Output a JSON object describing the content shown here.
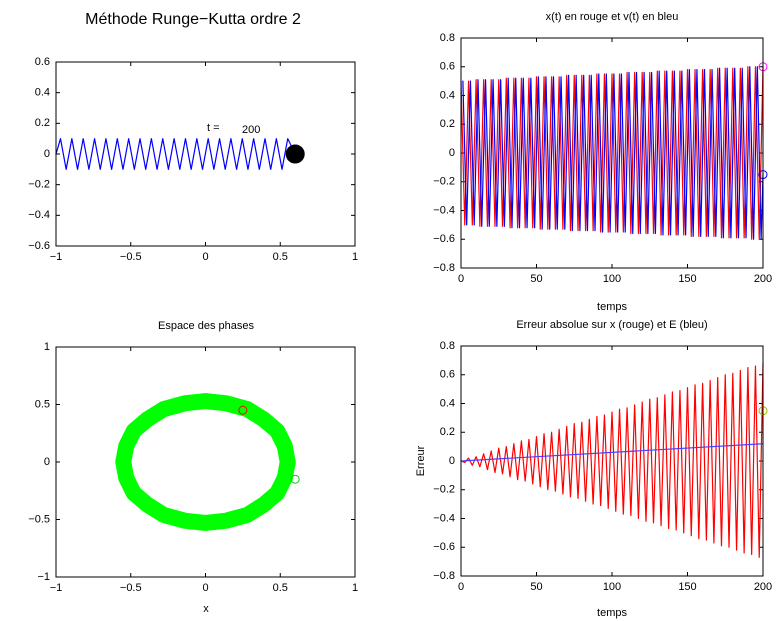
{
  "chart_data": [
    {
      "type": "line",
      "title": "Méthode Runge−Kutta ordre 2",
      "xlim": [
        -1,
        1
      ],
      "ylim": [
        -0.6,
        0.6
      ],
      "xticks": [
        {
          "value": -1,
          "label": "−1"
        },
        {
          "value": -0.5,
          "label": "−0.5"
        },
        0,
        0.5,
        1
      ],
      "yticks": [
        {
          "value": -0.6,
          "label": "−0.6"
        },
        {
          "value": -0.4,
          "label": "−0.4"
        },
        {
          "value": -0.2,
          "label": "−0.2"
        },
        0,
        0.2,
        0.4,
        0.6
      ],
      "series": [
        {
          "color": "#0000ff",
          "x": [
            -1,
            -0.97,
            -0.932,
            -0.894,
            -0.856,
            -0.818,
            -0.78,
            -0.742,
            -0.704,
            -0.666,
            -0.628,
            -0.59,
            -0.552,
            -0.514,
            -0.476,
            -0.438,
            -0.4,
            -0.362,
            -0.324,
            -0.286,
            -0.248,
            -0.21,
            -0.172,
            -0.134,
            -0.096,
            -0.058,
            -0.02,
            0.018,
            0.056,
            0.094,
            0.132,
            0.17,
            0.208,
            0.246,
            0.284,
            0.322,
            0.36,
            0.398,
            0.436,
            0.474,
            0.512,
            0.55,
            0.6
          ],
          "values": [
            0,
            0.1,
            -0.1,
            0.1,
            -0.1,
            0.1,
            -0.1,
            0.1,
            -0.1,
            0.1,
            -0.1,
            0.1,
            -0.1,
            0.1,
            -0.1,
            0.1,
            -0.1,
            0.1,
            -0.1,
            0.1,
            -0.1,
            0.1,
            -0.1,
            0.1,
            -0.1,
            0.1,
            -0.1,
            0.1,
            -0.1,
            0.1,
            -0.1,
            0.1,
            -0.1,
            0.1,
            -0.1,
            0.1,
            -0.1,
            0.1,
            -0.1,
            0.1,
            -0.1,
            0.1,
            0
          ]
        }
      ],
      "markers": [
        {
          "x": 0.6,
          "y": 0,
          "color": "#000000",
          "filled": true
        }
      ],
      "time_label": "t =",
      "time": 200
    },
    {
      "type": "line",
      "title": "x(t) en rouge et v(t) en bleu",
      "xlabel": "temps",
      "xlim": [
        0,
        200
      ],
      "ylim": [
        -0.8,
        0.8
      ],
      "xticks": [
        0,
        50,
        100,
        150,
        200
      ],
      "yticks": [
        {
          "value": -0.8,
          "label": "−0.8"
        },
        {
          "value": -0.6,
          "label": "−0.6"
        },
        {
          "value": -0.4,
          "label": "−0.4"
        },
        {
          "value": -0.2,
          "label": "−0.2"
        },
        0,
        0.2,
        0.4,
        0.6,
        0.8
      ],
      "series": [
        {
          "color": "#ff0000",
          "x": [
            0,
            2.5,
            5,
            7.5,
            10,
            12.5,
            15,
            17.5,
            20,
            22.5,
            25,
            27.5,
            30,
            32.5,
            35,
            37.5,
            40,
            42.5,
            45,
            47.5,
            50,
            52.5,
            55,
            57.5,
            60,
            62.5,
            65,
            67.5,
            70,
            72.5,
            75,
            77.5,
            80,
            82.5,
            85,
            87.5,
            90,
            92.5,
            95,
            97.5,
            100,
            102.5,
            105,
            107.5,
            110,
            112.5,
            115,
            117.5,
            120,
            122.5,
            125,
            127.5,
            130,
            132.5,
            135,
            137.5,
            140,
            142.5,
            145,
            147.5,
            150,
            152.5,
            155,
            157.5,
            160,
            162.5,
            165,
            167.5,
            170,
            172.5,
            175,
            177.5,
            180,
            182.5,
            185,
            187.5,
            190,
            192.5,
            195,
            197.5,
            200
          ],
          "values": [
            0.5,
            -0.5,
            0.5,
            -0.5,
            0.51,
            -0.51,
            0.51,
            -0.51,
            0.51,
            -0.51,
            0.51,
            -0.51,
            0.52,
            -0.52,
            0.52,
            -0.52,
            0.52,
            -0.52,
            0.52,
            -0.52,
            0.53,
            -0.53,
            0.53,
            -0.53,
            0.53,
            -0.53,
            0.53,
            -0.53,
            0.54,
            -0.54,
            0.54,
            -0.54,
            0.54,
            -0.54,
            0.54,
            -0.54,
            0.55,
            -0.55,
            0.55,
            -0.55,
            0.55,
            -0.55,
            0.55,
            -0.55,
            0.56,
            -0.56,
            0.56,
            -0.56,
            0.56,
            -0.56,
            0.56,
            -0.56,
            0.57,
            -0.57,
            0.57,
            -0.57,
            0.57,
            -0.57,
            0.57,
            -0.57,
            0.58,
            -0.58,
            0.58,
            -0.58,
            0.58,
            -0.58,
            0.58,
            -0.58,
            0.59,
            -0.59,
            0.59,
            -0.59,
            0.59,
            -0.59,
            0.59,
            -0.59,
            0.6,
            -0.6,
            0.6,
            -0.6,
            0.6
          ]
        },
        {
          "color": "#0000ff",
          "x": [
            1.25,
            3.75,
            6.25,
            8.75,
            11.25,
            13.75,
            16.25,
            18.75,
            21.25,
            23.75,
            26.25,
            28.75,
            31.25,
            33.75,
            36.25,
            38.75,
            41.25,
            43.75,
            46.25,
            48.75,
            51.25,
            53.75,
            56.25,
            58.75,
            61.25,
            63.75,
            66.25,
            68.75,
            71.25,
            73.75,
            76.25,
            78.75,
            81.25,
            83.75,
            86.25,
            88.75,
            91.25,
            93.75,
            96.25,
            98.75,
            101.25,
            103.75,
            106.25,
            108.75,
            111.25,
            113.75,
            116.25,
            118.75,
            121.25,
            123.75,
            126.25,
            128.75,
            131.25,
            133.75,
            136.25,
            138.75,
            141.25,
            143.75,
            146.25,
            148.75,
            151.25,
            153.75,
            156.25,
            158.75,
            161.25,
            163.75,
            166.25,
            168.75,
            171.25,
            173.75,
            176.25,
            178.75,
            181.25,
            183.75,
            186.25,
            188.75,
            191.25,
            193.75,
            196.25,
            198.75,
            200
          ],
          "values": [
            0.5,
            -0.5,
            0.5,
            -0.5,
            0.51,
            -0.51,
            0.51,
            -0.51,
            0.51,
            -0.51,
            0.51,
            -0.51,
            0.52,
            -0.52,
            0.52,
            -0.52,
            0.52,
            -0.52,
            0.52,
            -0.52,
            0.53,
            -0.53,
            0.53,
            -0.53,
            0.53,
            -0.53,
            0.53,
            -0.53,
            0.54,
            -0.54,
            0.54,
            -0.54,
            0.54,
            -0.54,
            0.54,
            -0.54,
            0.55,
            -0.55,
            0.55,
            -0.55,
            0.55,
            -0.55,
            0.55,
            -0.55,
            0.56,
            -0.56,
            0.56,
            -0.56,
            0.56,
            -0.56,
            0.56,
            -0.56,
            0.57,
            -0.57,
            0.57,
            -0.57,
            0.57,
            -0.57,
            0.57,
            -0.57,
            0.58,
            -0.58,
            0.58,
            -0.58,
            0.58,
            -0.58,
            0.58,
            -0.58,
            0.59,
            -0.59,
            0.59,
            -0.59,
            0.59,
            -0.59,
            0.59,
            -0.59,
            0.6,
            -0.6,
            0.6,
            -0.6,
            -0.15
          ]
        }
      ],
      "markers": [
        {
          "x": 200,
          "y": 0.6,
          "color": "#ff00ff",
          "filled": false
        },
        {
          "x": 200,
          "y": -0.15,
          "color": "#0000ff",
          "filled": false
        }
      ]
    },
    {
      "type": "line",
      "title": "Espace des phases",
      "xlabel": "x",
      "xlim": [
        -1,
        1
      ],
      "ylim": [
        -1,
        1
      ],
      "xticks": [
        {
          "value": -1,
          "label": "−1"
        },
        {
          "value": -0.5,
          "label": "−0.5"
        },
        0,
        0.5,
        1
      ],
      "yticks": [
        {
          "value": -1,
          "label": "−1"
        },
        {
          "value": -0.5,
          "label": "−0.5"
        },
        0,
        0.5,
        1
      ],
      "series": [
        {
          "color": "#00ff00",
          "x": [
            0.55,
            0.53,
            0.48,
            0.39,
            0.28,
            0.14,
            0,
            -0.14,
            -0.28,
            -0.39,
            -0.48,
            -0.53,
            -0.55,
            -0.53,
            -0.48,
            -0.39,
            -0.28,
            -0.14,
            0,
            0.14,
            0.28,
            0.39,
            0.48,
            0.53,
            0.55
          ],
          "values": [
            0,
            0.14,
            0.27,
            0.37,
            0.46,
            0.51,
            0.53,
            0.51,
            0.46,
            0.37,
            0.27,
            0.14,
            0,
            -0.14,
            -0.27,
            -0.37,
            -0.46,
            -0.51,
            -0.53,
            -0.51,
            -0.46,
            -0.37,
            -0.27,
            -0.14,
            0
          ]
        }
      ],
      "markers": [
        {
          "x": 0.25,
          "y": 0.45,
          "color": "#ff0000",
          "filled": false
        },
        {
          "x": 0.6,
          "y": -0.15,
          "color": "#00cc00",
          "filled": false
        }
      ]
    },
    {
      "type": "line",
      "title": "Erreur absolue sur x (rouge) et E (bleu)",
      "xlabel": "temps",
      "ylabel": "Erreur",
      "xlim": [
        0,
        200
      ],
      "ylim": [
        -0.8,
        0.8
      ],
      "xticks": [
        0,
        50,
        100,
        150,
        200
      ],
      "yticks": [
        {
          "value": -0.8,
          "label": "−0.8"
        },
        {
          "value": -0.6,
          "label": "−0.6"
        },
        {
          "value": -0.4,
          "label": "−0.4"
        },
        {
          "value": -0.2,
          "label": "−0.2"
        },
        0,
        0.2,
        0.4,
        0.6,
        0.8
      ],
      "series": [
        {
          "color": "#ff0000",
          "x": [
            0,
            2.5,
            5,
            7.5,
            10,
            12.5,
            15,
            17.5,
            20,
            22.5,
            25,
            27.5,
            30,
            32.5,
            35,
            37.5,
            40,
            42.5,
            45,
            47.5,
            50,
            52.5,
            55,
            57.5,
            60,
            62.5,
            65,
            67.5,
            70,
            72.5,
            75,
            77.5,
            80,
            82.5,
            85,
            87.5,
            90,
            92.5,
            95,
            97.5,
            100,
            102.5,
            105,
            107.5,
            110,
            112.5,
            115,
            117.5,
            120,
            122.5,
            125,
            127.5,
            130,
            132.5,
            135,
            137.5,
            140,
            142.5,
            145,
            147.5,
            150,
            152.5,
            155,
            157.5,
            160,
            162.5,
            165,
            167.5,
            170,
            172.5,
            175,
            177.5,
            180,
            182.5,
            185,
            187.5,
            190,
            192.5,
            195,
            197.5,
            200
          ],
          "values": [
            0,
            -0.01,
            0.02,
            -0.03,
            0.03,
            -0.04,
            0.05,
            -0.06,
            0.07,
            -0.08,
            0.09,
            -0.09,
            0.1,
            -0.11,
            0.12,
            -0.13,
            0.14,
            -0.14,
            0.15,
            -0.16,
            0.17,
            -0.18,
            0.19,
            -0.2,
            0.2,
            -0.21,
            0.22,
            -0.23,
            0.24,
            -0.25,
            0.26,
            -0.26,
            0.27,
            -0.28,
            0.29,
            -0.3,
            0.31,
            -0.31,
            0.32,
            -0.33,
            0.34,
            -0.35,
            0.36,
            -0.37,
            0.37,
            -0.38,
            0.39,
            -0.4,
            0.41,
            -0.42,
            0.43,
            -0.43,
            0.44,
            -0.45,
            0.46,
            -0.47,
            0.48,
            -0.48,
            0.49,
            -0.5,
            0.51,
            -0.52,
            0.53,
            -0.54,
            0.54,
            -0.55,
            0.56,
            -0.57,
            0.58,
            -0.59,
            0.6,
            -0.6,
            0.61,
            -0.62,
            0.63,
            -0.64,
            0.65,
            -0.65,
            0.66,
            -0.67,
            0.68
          ]
        },
        {
          "color": "#4b3fff",
          "x": [
            0,
            200
          ],
          "values": [
            0,
            0.12
          ]
        }
      ],
      "markers": [
        {
          "x": 200,
          "y": 0.35,
          "color": "#99bb00",
          "filled": false
        }
      ]
    }
  ]
}
